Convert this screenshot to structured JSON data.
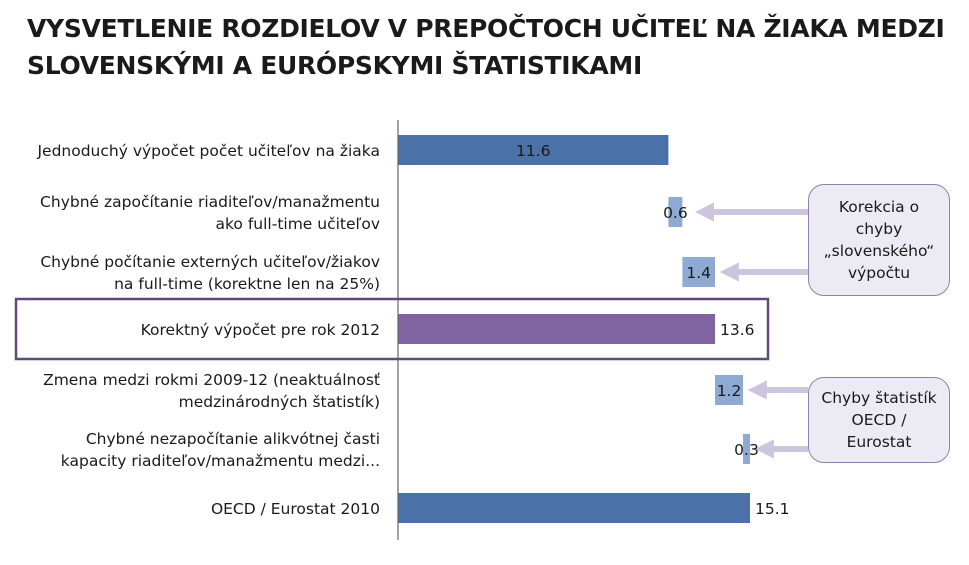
{
  "title": {
    "line1": "VYSVETLENIE ROZDIELOV V PREPOČTOCH UČITEĽ NA ŽIAKA MEDZI",
    "line2": "SLOVENSKÝMI A EURÓPSKYMI ŠTATISTIKAMI"
  },
  "callouts": [
    {
      "lines": [
        "Korekcia o",
        "chyby",
        "„slovenského“",
        "výpočtu"
      ]
    },
    {
      "lines": [
        "Chyby štatistík",
        "OECD /",
        "Eurostat"
      ]
    }
  ],
  "colors": {
    "total_bar": "#4a72a8",
    "correction_bar": "#8eaad3",
    "highlight_bar": "#8064a2",
    "highlight_frame": "#604a7b",
    "arrow": "#cdc5de",
    "axis": "#666666"
  },
  "chart_data": {
    "type": "bar",
    "orientation": "horizontal",
    "subtype": "waterfall",
    "title": "VYSVETLENIE ROZDIELOV V PREPOČTOCH UČITEĽ NA ŽIAKA MEDZI SLOVENSKÝMI A EURÓPSKYMI ŠTATISTIKAMI",
    "xlim": [
      0,
      15.1
    ],
    "grid": false,
    "legend": "none",
    "categories": [
      [
        "Jednoduchý výpočet počet učiteľov na žiaka"
      ],
      [
        "Chybné započítanie riaditeľov/manažmentu",
        "ako full-time učiteľov"
      ],
      [
        "Chybné počítanie externých učiteľov/žiakov",
        "na full-time (korektne len na 25%)"
      ],
      [
        "Korektný výpočet pre rok 2012"
      ],
      [
        "Zmena medzi rokmi 2009-12 (neaktuálnosť",
        "medzinárodných štatistík)"
      ],
      [
        "Chybné nezapočítanie alikvótnej časti",
        "kapacity riaditeľov/manažmentu medzi..."
      ],
      [
        "OECD / Eurostat 2010"
      ]
    ],
    "values": [
      11.6,
      0.6,
      1.4,
      13.6,
      1.2,
      0.3,
      15.1
    ],
    "value_labels": [
      "11.6",
      "0.6",
      "1.4",
      "13.6",
      "1.2",
      "0.3",
      "15.1"
    ],
    "bar_kinds": [
      "total",
      "delta",
      "delta",
      "highlight",
      "delta",
      "delta",
      "total"
    ],
    "highlighted_category": "Korektný výpočet pre rok 2012"
  }
}
